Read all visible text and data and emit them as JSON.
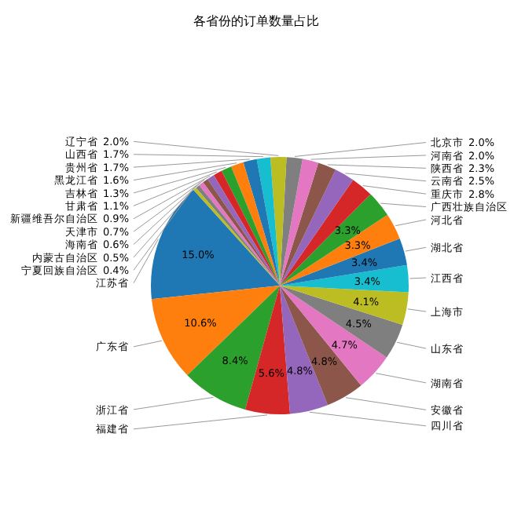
{
  "chart_data": {
    "type": "pie",
    "title": "各省份的订单数量占比",
    "categories": [
      "江苏省",
      "广东省",
      "浙江省",
      "福建省",
      "四川省",
      "安徽省",
      "湖南省",
      "山东省",
      "上海市",
      "江西省",
      "湖北省",
      "河北省",
      "广西壮族自治区",
      "重庆市",
      "云南省",
      "陕西省",
      "河南省",
      "北京市",
      "辽宁省",
      "山西省",
      "贵州省",
      "黑龙江省",
      "吉林省",
      "甘肃省",
      "新疆维吾尔自治区",
      "天津市",
      "海南省",
      "内蒙古自治区",
      "宁夏回族自治区"
    ],
    "values": [
      15.0,
      10.6,
      8.4,
      5.6,
      4.8,
      4.8,
      4.7,
      4.5,
      4.1,
      3.4,
      3.4,
      3.3,
      3.3,
      2.8,
      2.5,
      2.3,
      2.0,
      2.0,
      2.0,
      1.7,
      1.7,
      1.6,
      1.3,
      1.1,
      0.9,
      0.7,
      0.6,
      0.5,
      0.4
    ],
    "value_labels": [
      "15.0%",
      "10.6%",
      "8.4%",
      "5.6%",
      "4.8%",
      "4.8%",
      "4.7%",
      "4.5%",
      "4.1%",
      "3.4%",
      "3.4%",
      "3.3%",
      "3.3%",
      "2.8%",
      "2.5%",
      "2.3%",
      "2.0%",
      "2.0%",
      "2.0%",
      "1.7%",
      "1.7%",
      "1.6%",
      "1.3%",
      "1.1%",
      "0.9%",
      "0.7%",
      "0.6%",
      "0.5%",
      "0.4%"
    ],
    "colors": [
      "#1f77b4",
      "#ff7f0e",
      "#2ca02c",
      "#d62728",
      "#9467bd",
      "#8c564b",
      "#e377c2",
      "#7f7f7f",
      "#bcbd22",
      "#17becf",
      "#1f77b4",
      "#ff7f0e",
      "#2ca02c",
      "#d62728",
      "#9467bd",
      "#8c564b",
      "#e377c2",
      "#7f7f7f",
      "#bcbd22",
      "#17becf",
      "#1f77b4",
      "#ff7f0e",
      "#2ca02c",
      "#d62728",
      "#9467bd",
      "#8c564b",
      "#e377c2",
      "#7f7f7f",
      "#bcbd22"
    ]
  }
}
